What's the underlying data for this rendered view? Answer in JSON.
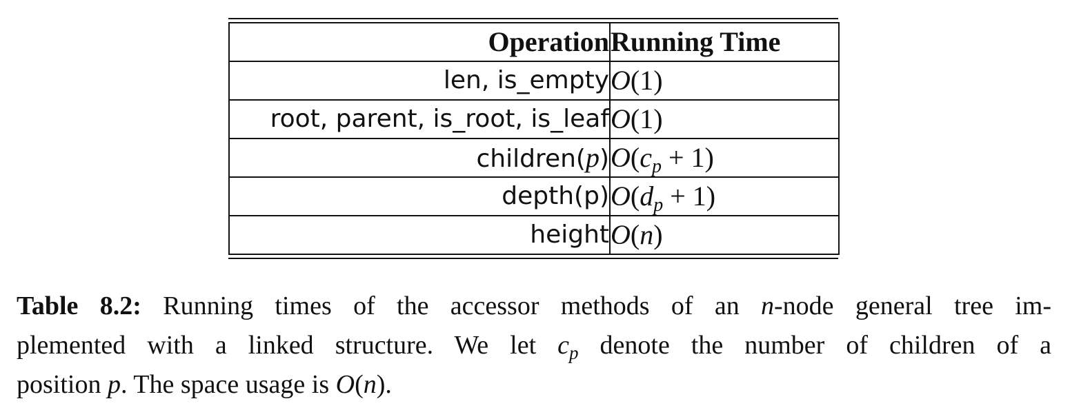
{
  "table": {
    "headers": {
      "operation": "Operation",
      "running_time": "Running Time"
    },
    "rows": [
      {
        "operation": "len, is_empty",
        "running_time": "O(1)"
      },
      {
        "operation": "root, parent, is_root, is_leaf",
        "running_time": "O(1)"
      },
      {
        "operation": "children(p)",
        "running_time": "O(c_p + 1)"
      },
      {
        "operation": "depth(p)",
        "running_time": "O(d_p + 1)"
      },
      {
        "operation": "height",
        "running_time": "O(n)"
      }
    ]
  },
  "caption": {
    "label": "Table 8.2:",
    "text": "Running times of the accessor methods of an n-node general tree implemented with a linked structure. We let c_p denote the number of children of a position p. The space usage is O(n).",
    "line1_a": "Running times of the accessor methods of an ",
    "line1_n": "n",
    "line1_b": "-node general tree im-",
    "line2_a": "plemented with a linked structure.  We let ",
    "line2_c": "c",
    "line2_p": "p",
    "line2_b": " denote the number of children of a",
    "line3_a": "position ",
    "line3_p": "p",
    "line3_b": ". The space usage is ",
    "line3_o": "O(n)",
    "line3_c": "."
  }
}
